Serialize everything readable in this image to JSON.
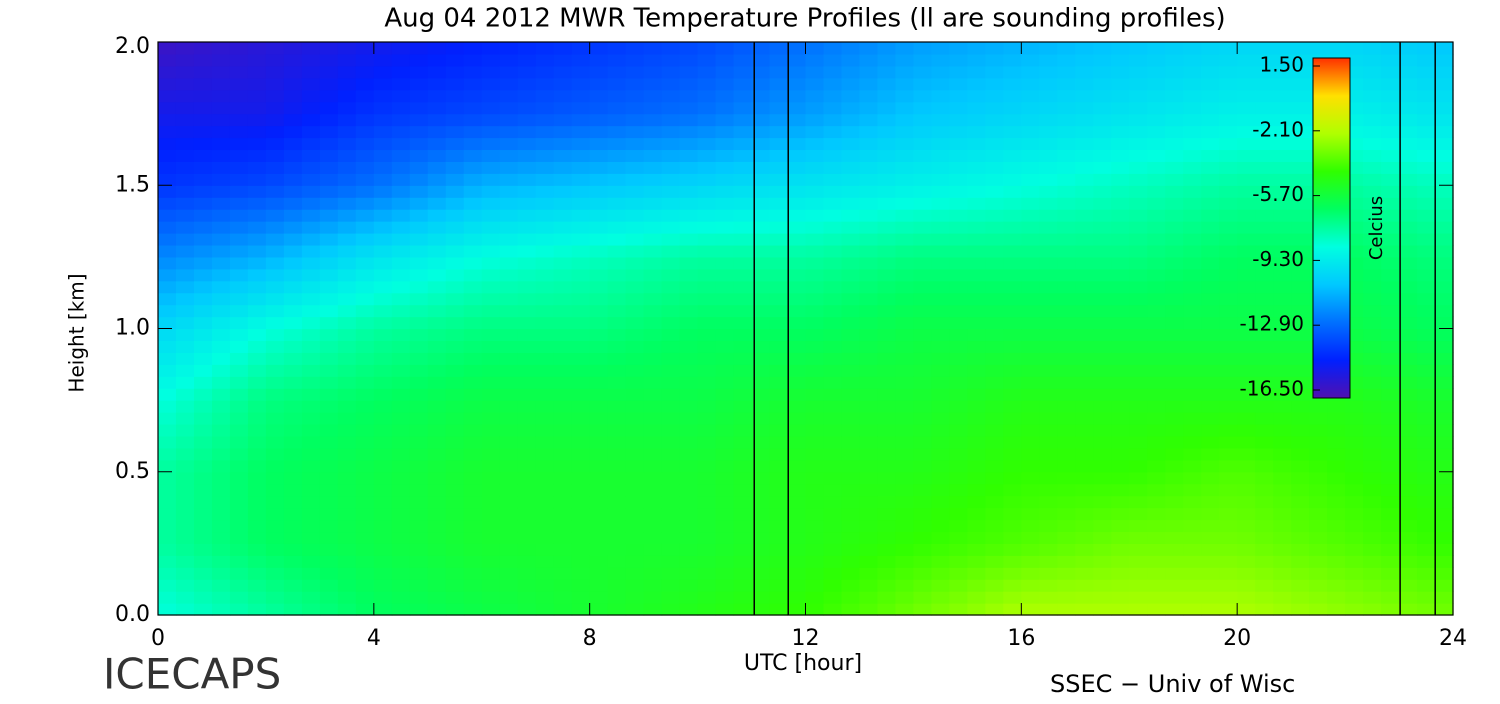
{
  "chart_data": {
    "type": "heatmap",
    "title": "Aug 04 2012 MWR Temperature Profiles (ll are sounding profiles)",
    "x_label": "UTC [hour]",
    "y_label": "Height [km]",
    "x": [
      0,
      2,
      4,
      6,
      8,
      10,
      12,
      14,
      16,
      18,
      20,
      22,
      24
    ],
    "y": [
      0,
      0.25,
      0.5,
      0.75,
      1,
      1.25,
      1.5,
      1.75,
      2
    ],
    "z": [
      [
        -8.5,
        -7.5,
        -6.5,
        -6,
        -5.5,
        -5,
        -4.5,
        -3.5,
        -2.5,
        -2.5,
        -2.5,
        -3,
        -3.5
      ],
      [
        -7.5,
        -6.5,
        -6,
        -5.5,
        -5.5,
        -5.5,
        -5,
        -4.5,
        -4,
        -3.5,
        -3.5,
        -4,
        -4.5
      ],
      [
        -7.5,
        -6.5,
        -6,
        -5.5,
        -5.5,
        -5.5,
        -5,
        -5,
        -4.5,
        -4.5,
        -4,
        -4.5,
        -5
      ],
      [
        -8.5,
        -7,
        -6.5,
        -6,
        -6,
        -6,
        -5.5,
        -5.5,
        -5,
        -5,
        -5,
        -5,
        -5.5
      ],
      [
        -10,
        -8.5,
        -7.5,
        -7,
        -7,
        -6.5,
        -6.5,
        -6,
        -6,
        -6,
        -6,
        -6,
        -6.5
      ],
      [
        -12,
        -11,
        -9.5,
        -8.5,
        -8,
        -7.5,
        -7.5,
        -7,
        -7,
        -7,
        -6.5,
        -6.5,
        -7
      ],
      [
        -14,
        -13.5,
        -12.5,
        -11,
        -10.5,
        -10,
        -9.5,
        -9,
        -8.5,
        -8,
        -7.5,
        -7.5,
        -8
      ],
      [
        -15,
        -15,
        -14,
        -13.5,
        -13,
        -12.5,
        -11.5,
        -10.5,
        -10,
        -9.5,
        -9,
        -9,
        -9.5
      ],
      [
        -16,
        -15.5,
        -15,
        -14.5,
        -14,
        -13.5,
        -12.5,
        -11.5,
        -11,
        -10.5,
        -10,
        -10,
        -10.5
      ]
    ],
    "sounding_lines": [
      11.05,
      11.68,
      23.02,
      23.67
    ],
    "xlim": [
      0,
      24
    ],
    "xticks": [
      0,
      4,
      8,
      12,
      16,
      20,
      24
    ],
    "ylim": [
      0,
      2
    ],
    "yticks": [
      {
        "value": 0,
        "label": "0.0"
      },
      0.5,
      {
        "value": 1,
        "label": "1.0"
      },
      1.5,
      {
        "value": 2,
        "label": "2.0"
      }
    ],
    "colorbar_label": "Celcius",
    "clim": [
      -16.5,
      1.5
    ],
    "colorbar_ticks": [
      {
        "value": 1.5,
        "label": "1.50"
      },
      {
        "value": -2.1,
        "label": "-2.10"
      },
      {
        "value": -5.7,
        "label": "-5.70"
      },
      {
        "value": -9.3,
        "label": "-9.30"
      },
      {
        "value": -12.9,
        "label": "-12.90"
      },
      {
        "value": -16.5,
        "label": "-16.50"
      }
    ],
    "colorscale": [
      "#5010b0",
      "#0020ff",
      "#0070ff",
      "#00c8ff",
      "#00ffe0",
      "#00ff60",
      "#30ff00",
      "#b0ff00",
      "#ffe000",
      "#ff3000"
    ],
    "footer_left": "ICECAPS",
    "footer_right": "SSEC − Univ of Wisc"
  }
}
